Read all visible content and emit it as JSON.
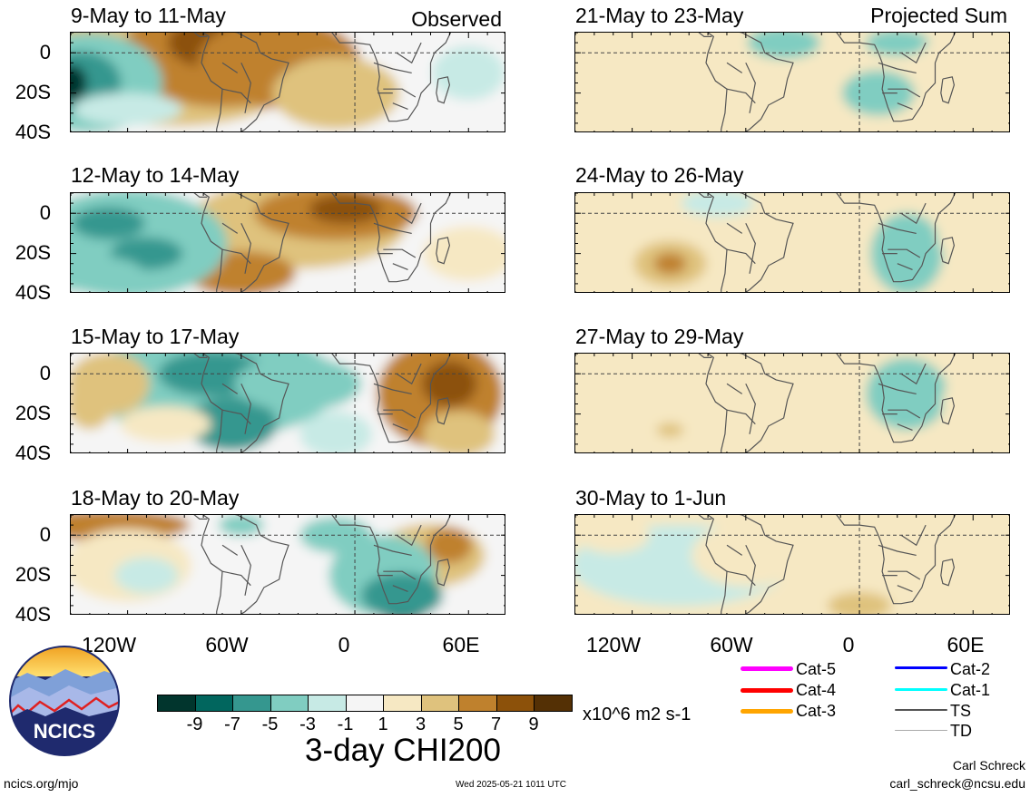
{
  "panels": [
    {
      "title": "9-May to 11-May",
      "tag": "Observed"
    },
    {
      "title": "12-May to 14-May",
      "tag": ""
    },
    {
      "title": "15-May to 17-May",
      "tag": ""
    },
    {
      "title": "18-May to 20-May",
      "tag": ""
    },
    {
      "title": "21-May to 23-May",
      "tag": "Projected Sum"
    },
    {
      "title": "24-May to 26-May",
      "tag": ""
    },
    {
      "title": "27-May to 29-May",
      "tag": ""
    },
    {
      "title": "30-May to 1-Jun",
      "tag": ""
    }
  ],
  "lat_labels": [
    "0",
    "20S",
    "40S"
  ],
  "lon_labels": [
    "120W",
    "60W",
    "0",
    "60E"
  ],
  "colorbar": {
    "colors": [
      "#01352d",
      "#01665e",
      "#35978f",
      "#80cdc1",
      "#c7eae5",
      "#f5f5f5",
      "#f6e8c3",
      "#dfc27d",
      "#bf812d",
      "#8c510a",
      "#543005"
    ],
    "labels": [
      "-9",
      "-7",
      "-5",
      "-3",
      "-1",
      "1",
      "3",
      "5",
      "7",
      "9"
    ],
    "units": "x10^6 m2 s-1",
    "title": "3-day CHI200"
  },
  "legend": [
    {
      "label": "Cat-5",
      "color": "#ff00ff"
    },
    {
      "label": "Cat-4",
      "color": "#ff0000"
    },
    {
      "label": "Cat-3",
      "color": "#ffa500"
    },
    {
      "label": "Cat-2",
      "color": "#0000ff"
    },
    {
      "label": "Cat-1",
      "color": "#00ffff"
    },
    {
      "label": "TS",
      "color": "#555555"
    },
    {
      "label": "TD",
      "color": "#aaaaaa"
    }
  ],
  "logo": {
    "text": "NCICS"
  },
  "footer": {
    "site": "ncics.org/mjo",
    "date": "Wed 2025-05-21 1011 UTC",
    "author": "Carl Schreck",
    "email": "carl_schreck@ncsu.edu"
  }
}
